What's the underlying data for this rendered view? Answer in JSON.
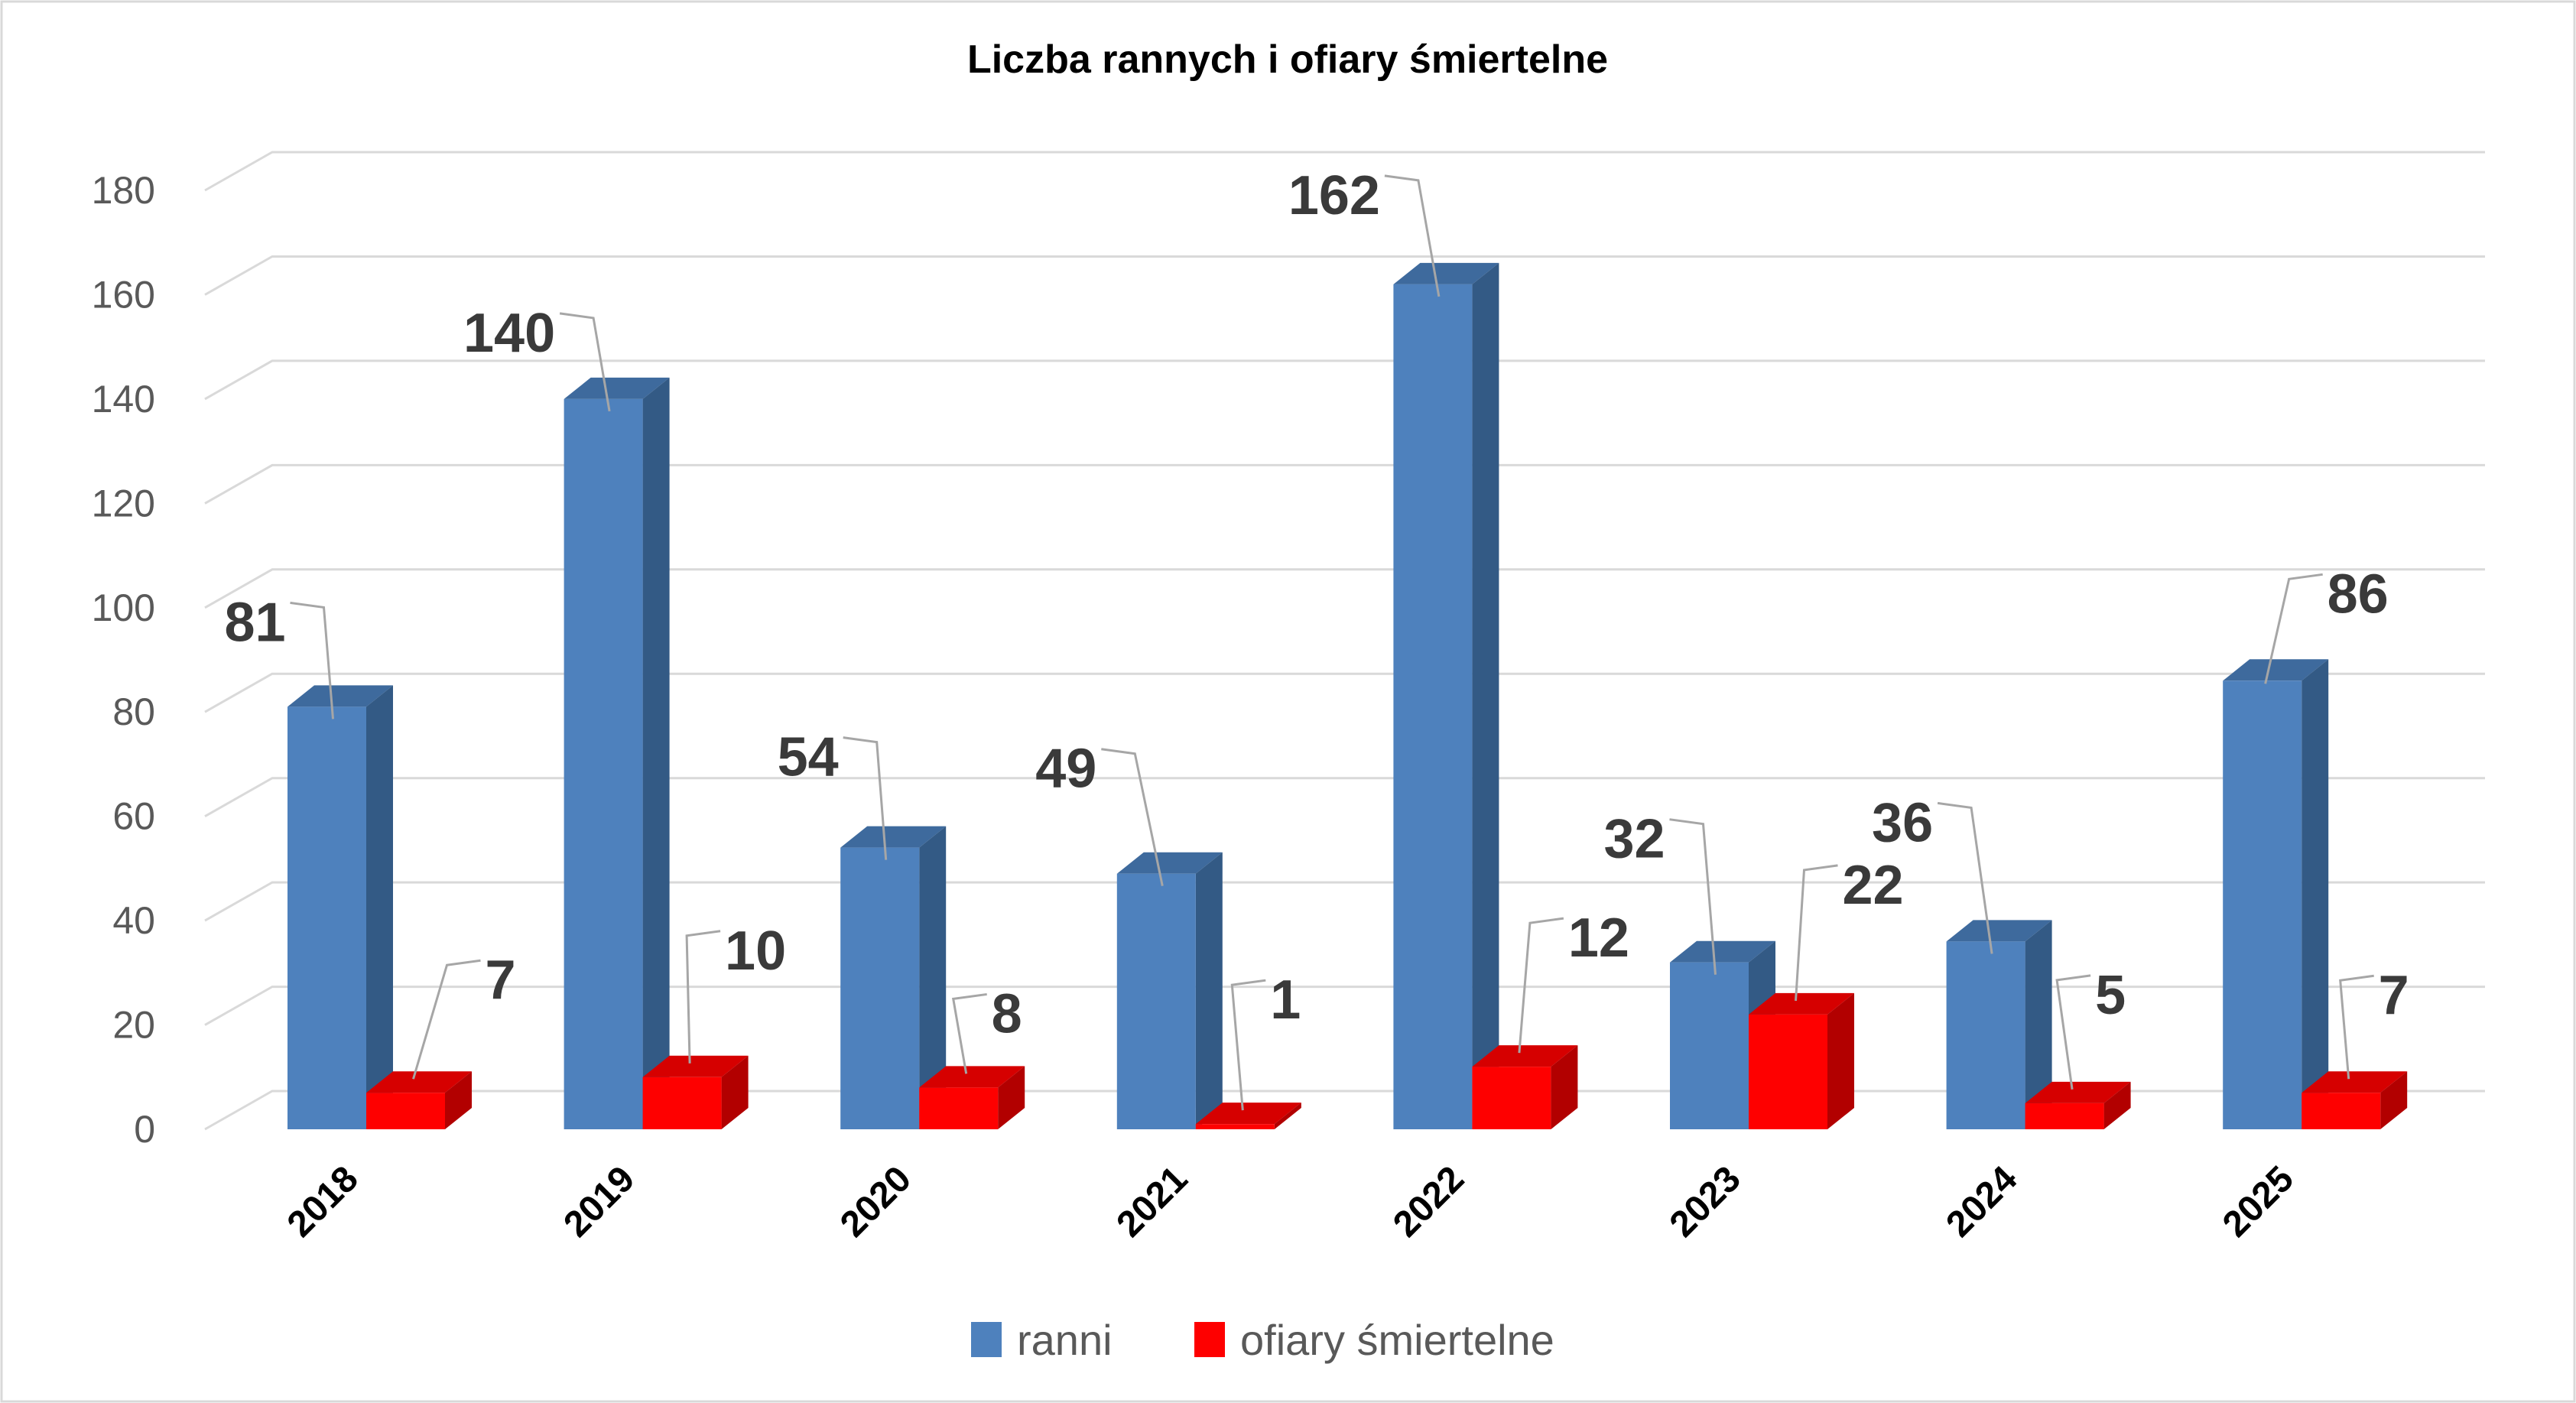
{
  "chart_data": {
    "type": "bar",
    "style": "3d-clustered-column",
    "title": "Liczba rannych i ofiary śmiertelne",
    "categories": [
      "2018",
      "2019",
      "2020",
      "2021",
      "2022",
      "2023",
      "2024",
      "2025"
    ],
    "series": [
      {
        "name": "ranni",
        "color": "#4E81BD",
        "color_top": "#3E6A9D",
        "color_side": "#335A85",
        "values": [
          81,
          140,
          54,
          49,
          162,
          32,
          36,
          86
        ]
      },
      {
        "name": "ofiary śmiertelne",
        "color": "#FE0000",
        "color_top": "#D60000",
        "color_side": "#B20000",
        "values": [
          7,
          10,
          8,
          1,
          12,
          22,
          5,
          7
        ]
      }
    ],
    "y_axis": {
      "min": 0,
      "max": 180,
      "step": 20,
      "tick_labels": [
        "0",
        "20",
        "40",
        "60",
        "80",
        "100",
        "120",
        "140",
        "160",
        "180"
      ]
    },
    "x_axis": {
      "label_rotation_deg": -45
    },
    "legend": {
      "position": "bottom",
      "entries": [
        "ranni",
        "ofiary śmiertelne"
      ]
    },
    "colors": {
      "background": "#FFFFFF",
      "border": "#D9D9D9",
      "grid": "#D9D9D9",
      "axis_text": "#595959",
      "data_label": "#3A3A3A",
      "category_label": "#000000",
      "title": "#000000",
      "leader_line": "#A6A6A6"
    },
    "grid_on": true,
    "data_labels_shown": true
  }
}
